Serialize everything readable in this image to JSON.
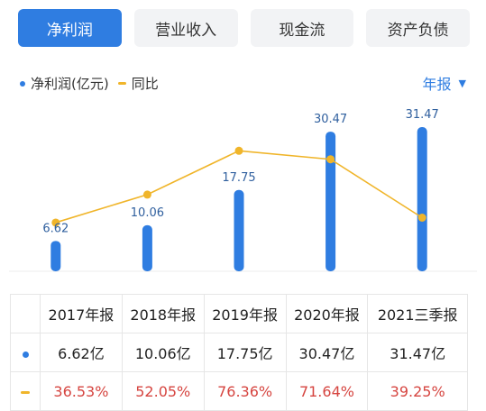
{
  "tabs": [
    {
      "label": "净利润",
      "active": true
    },
    {
      "label": "营业收入",
      "active": false
    },
    {
      "label": "现金流",
      "active": false
    },
    {
      "label": "资产负债",
      "active": false
    }
  ],
  "legend": {
    "series1": "净利润(亿元)",
    "series2": "同比"
  },
  "period_selector": {
    "label": "年报"
  },
  "colors": {
    "accent": "#2f7de1",
    "bar": "#2f7de1",
    "line": "#f0b52a",
    "negative_text": "#d64540"
  },
  "chart_data": {
    "type": "bar",
    "categories": [
      "2017年报",
      "2018年报",
      "2019年报",
      "2020年报",
      "2021三季报"
    ],
    "series": [
      {
        "name": "净利润(亿元)",
        "type": "bar",
        "values": [
          6.62,
          10.06,
          17.75,
          30.47,
          31.47
        ],
        "labels": [
          "6.62",
          "10.06",
          "17.75",
          "30.47",
          "31.47"
        ]
      },
      {
        "name": "同比",
        "type": "line",
        "values": [
          36.53,
          52.05,
          76.36,
          71.64,
          39.25
        ]
      }
    ]
  },
  "table": {
    "headers": [
      "2017年报",
      "2018年报",
      "2019年报",
      "2020年报",
      "2021三季报"
    ],
    "profit_row": [
      "6.62亿",
      "10.06亿",
      "17.75亿",
      "30.47亿",
      "31.47亿"
    ],
    "yoy_row": [
      "36.53%",
      "52.05%",
      "76.36%",
      "71.64%",
      "39.25%"
    ]
  }
}
